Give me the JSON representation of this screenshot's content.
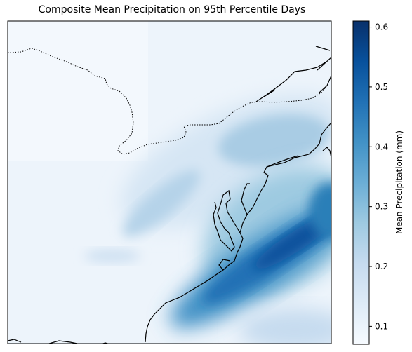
{
  "title": "Composite Mean Precipitation on 95th Percentile Days",
  "colorbar": {
    "label": "Mean Precipitation (mm)",
    "min": 0.07,
    "max": 0.61,
    "ticks": [
      "0.1",
      "0.2",
      "0.3",
      "0.4",
      "0.5",
      "0.6"
    ],
    "colormap": "Blues",
    "low_color": "#f7fbff",
    "high_color": "#08306b"
  },
  "map": {
    "projection": "PlateCarree",
    "region": "Northeastern United States and Atlantic coast",
    "features": [
      "coastline",
      "international-border"
    ]
  }
}
